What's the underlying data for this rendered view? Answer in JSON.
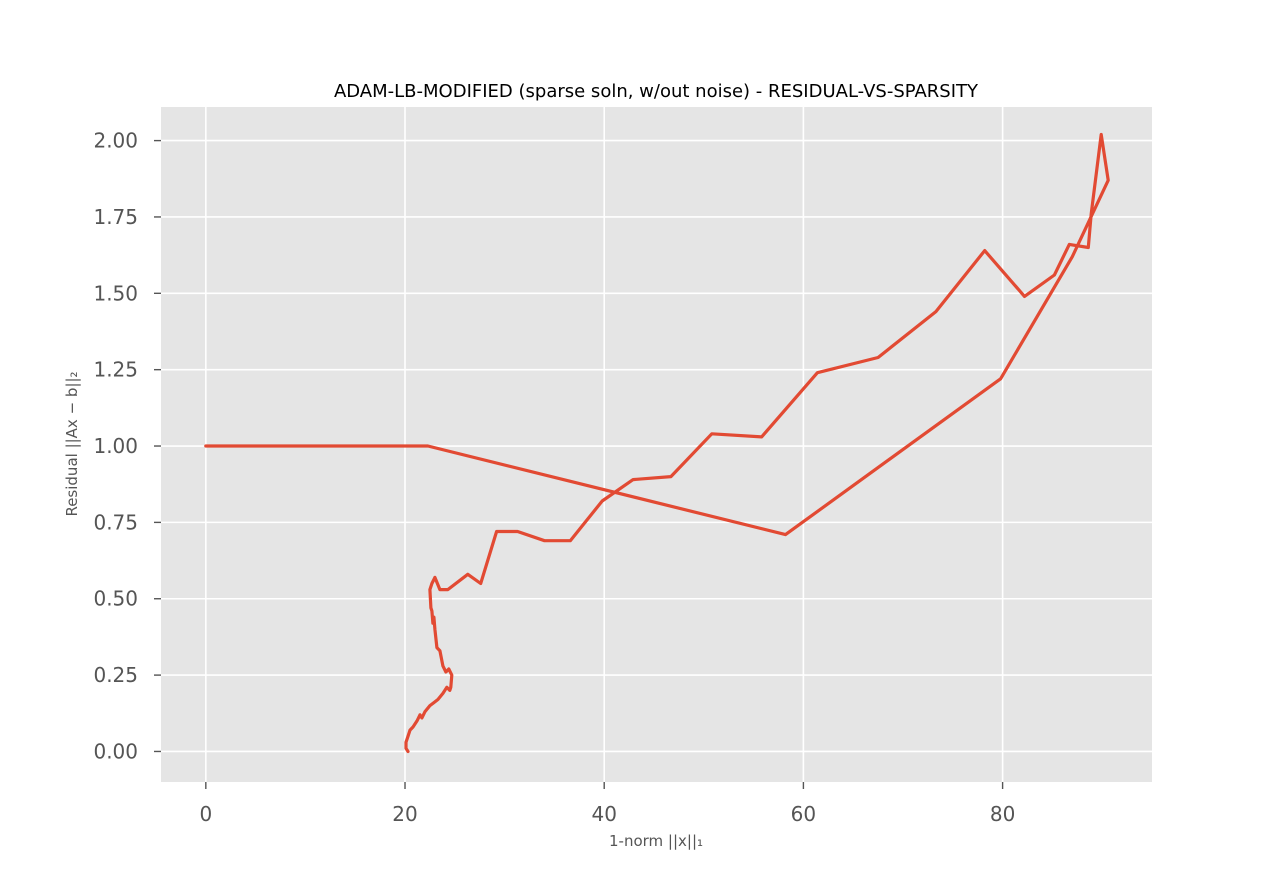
{
  "chart_data": {
    "type": "line",
    "title": "ADAM-LB-MODIFIED (sparse soln, w/out noise) - RESIDUAL-VS-SPARSITY",
    "xlabel": "1-norm ||x||₁",
    "ylabel": "Residual ||Ax − b||₂",
    "xlim": [
      -4.5,
      95
    ],
    "ylim": [
      -0.1,
      2.11
    ],
    "xticks": [
      0,
      20,
      40,
      60,
      80
    ],
    "xtick_labels": [
      "0",
      "20",
      "40",
      "60",
      "80"
    ],
    "yticks": [
      0.0,
      0.25,
      0.5,
      0.75,
      1.0,
      1.25,
      1.5,
      1.75,
      2.0
    ],
    "ytick_labels": [
      "0.00",
      "0.25",
      "0.50",
      "0.75",
      "1.00",
      "1.25",
      "1.50",
      "1.75",
      "2.00"
    ],
    "grid": true,
    "colors": {
      "line": "#E24A33",
      "plot_background": "#E5E5E5",
      "grid": "#FFFFFF",
      "figure_background": "#FFFFFF"
    },
    "series": [
      {
        "x": [
          0.0,
          22.3,
          58.2,
          79.8,
          87.0,
          90.6,
          89.9,
          88.9,
          88.6,
          86.7,
          85.2,
          82.2,
          78.2,
          73.3,
          67.5,
          61.4,
          55.8,
          50.8,
          46.7,
          42.9,
          39.8,
          36.6,
          34.0,
          31.3,
          29.2,
          27.6,
          26.3,
          24.3,
          23.5,
          23.0,
          22.7,
          22.5,
          22.6,
          22.7,
          22.8,
          22.9,
          23.0,
          23.2,
          23.5,
          23.8,
          24.1,
          24.4,
          24.7,
          24.6,
          24.5,
          24.2,
          23.8,
          23.3,
          22.9,
          22.5,
          22.0,
          21.7,
          21.5,
          21.2,
          20.8,
          20.5,
          20.3,
          20.2,
          20.1,
          20.1,
          20.2,
          20.3
        ],
        "y": [
          1.0,
          1.0,
          0.71,
          1.22,
          1.62,
          1.87,
          2.02,
          1.76,
          1.65,
          1.66,
          1.56,
          1.49,
          1.64,
          1.44,
          1.29,
          1.24,
          1.03,
          1.04,
          0.9,
          0.89,
          0.82,
          0.69,
          0.69,
          0.72,
          0.72,
          0.55,
          0.58,
          0.53,
          0.53,
          0.57,
          0.55,
          0.53,
          0.47,
          0.46,
          0.42,
          0.44,
          0.4,
          0.34,
          0.33,
          0.28,
          0.26,
          0.27,
          0.25,
          0.21,
          0.2,
          0.21,
          0.19,
          0.17,
          0.16,
          0.15,
          0.13,
          0.11,
          0.12,
          0.1,
          0.08,
          0.07,
          0.05,
          0.04,
          0.03,
          0.01,
          0.005,
          0.0
        ]
      }
    ]
  }
}
